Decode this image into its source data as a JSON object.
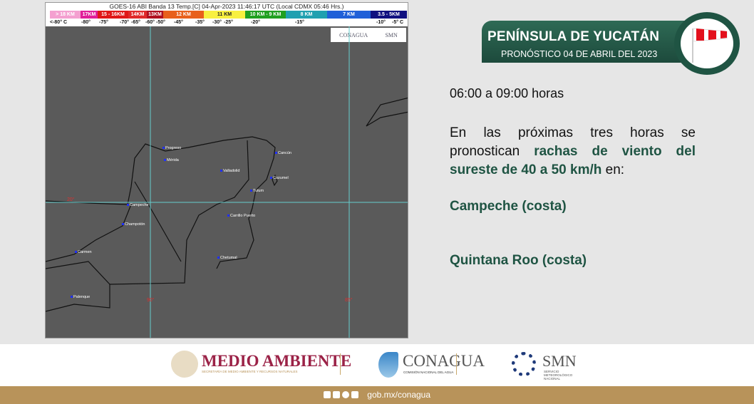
{
  "map": {
    "caption": "GOES-16 ABI Banda 13 Temp.[C] 04-Apr-2023 11:46:17 UTC (Local CDMX  05:46 Hrs.)",
    "scale": [
      {
        "label": "> 18 KM",
        "color": "#f4a0d0"
      },
      {
        "label": "17KM",
        "color": "#e0209a"
      },
      {
        "label": "15 - 16KM",
        "color": "#e01818"
      },
      {
        "label": "14KM",
        "color": "#e02a2a"
      },
      {
        "label": "13KM",
        "color": "#b01020"
      },
      {
        "label": "12 KM",
        "color": "#e8601c"
      },
      {
        "label": "11 KM",
        "color": "#f8f040"
      },
      {
        "label": "10 KM - 9 KM",
        "color": "#20a020"
      },
      {
        "label": "8 KM",
        "color": "#20a0b0"
      },
      {
        "label": "7 KM",
        "color": "#2060d8"
      },
      {
        "label": "3.5 - 5KM",
        "color": "#101080"
      }
    ],
    "temps": [
      "<-80° C",
      "-80°",
      "-75°",
      "-70°",
      "-65°",
      "-60°",
      "-50°",
      "-45°",
      "-35°",
      "-30°",
      "-25°",
      "-20°",
      "-15°",
      "-10°",
      "-5° C"
    ],
    "logo_conagua": "CONAGUA",
    "logo_smn": "SMN",
    "cities": [
      "Progreso",
      "Mérida",
      "Valladolid",
      "Cancún",
      "Cozumel",
      "Tulum",
      "Carrillo Puerto",
      "Campeche",
      "Champotón",
      "Carmen",
      "Chetumal",
      "Palenque"
    ],
    "grid_labels": [
      "20°",
      "90°",
      "85°"
    ]
  },
  "header": {
    "title": "PENÍNSULA DE YUCATÁN",
    "subtitle": "PRONÓSTICO 04 DE ABRIL DEL 2023",
    "icon": "windsock-icon"
  },
  "forecast": {
    "time": "06:00 a 09:00 horas",
    "intro": "En las próximas tres horas se pronostican ",
    "highlight": "rachas de viento del sureste de 40 a 50 km/h",
    "suffix": " en:",
    "regions": [
      "Campeche (costa)",
      "Quintana Roo (costa)"
    ]
  },
  "footer": {
    "medio": "MEDIO AMBIENTE",
    "medio_sub": "SECRETARÍA DE MEDIO AMBIENTE Y RECURSOS NATURALES",
    "conagua": "CONAGUA",
    "conagua_sub": "COMISIÓN NACIONAL DEL AGUA",
    "smn": "SMN",
    "smn_sub": "SERVICIO METEOROLÓGICO NACIONAL",
    "url": "gob.mx/conagua"
  },
  "colors": {
    "green": "#1f5443",
    "gold": "#b8935a",
    "maroon": "#9b2247"
  }
}
